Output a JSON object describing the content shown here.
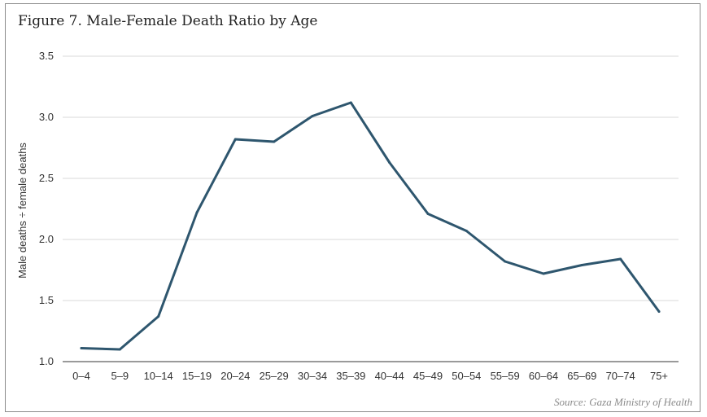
{
  "title": "Figure 7. Male-Female Death Ratio by Age",
  "source": "Source: Gaza Ministry of Health",
  "chart_data": {
    "type": "line",
    "title": "Figure 7. Male-Female Death Ratio by Age",
    "xlabel": "",
    "ylabel": "Male deaths ÷ female deaths",
    "categories": [
      "0–4",
      "5–9",
      "10–14",
      "15–19",
      "20–24",
      "25–29",
      "30–34",
      "35–39",
      "40–44",
      "45–49",
      "50–54",
      "55–59",
      "60–64",
      "65–69",
      "70–74",
      "75+"
    ],
    "series": [
      {
        "values": [
          1.11,
          1.1,
          1.37,
          2.22,
          2.82,
          2.8,
          3.01,
          3.12,
          2.63,
          2.21,
          2.07,
          1.82,
          1.72,
          1.79,
          1.84,
          1.41
        ]
      }
    ],
    "ylim": [
      1.0,
      3.5
    ],
    "yticks": [
      1.0,
      1.5,
      2.0,
      2.5,
      3.0,
      3.5
    ],
    "ytick_labels": [
      "1.0",
      "1.5",
      "2.0",
      "2.5",
      "3.0",
      "3.5"
    ],
    "grid": true,
    "line_color": "#2e566e"
  }
}
